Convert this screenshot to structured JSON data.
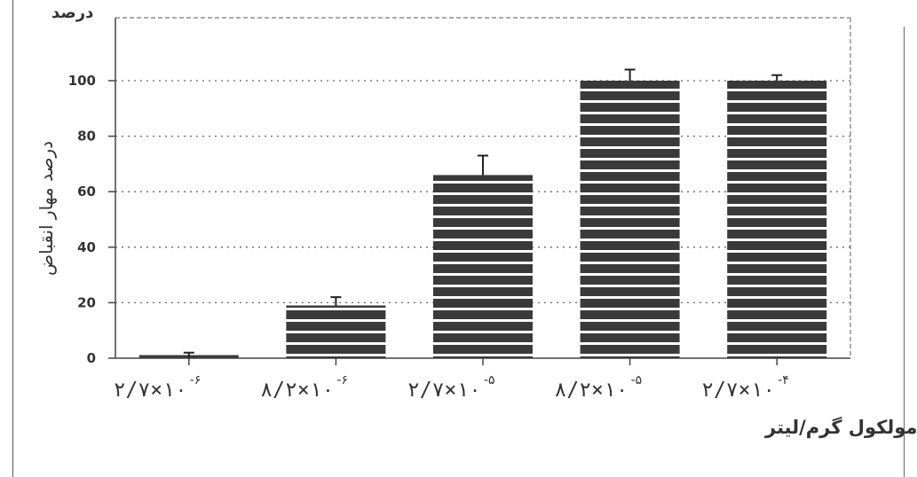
{
  "chart_data": {
    "type": "bar",
    "top_label": "درصد",
    "ylabel": "درصد مهار انقباض",
    "xlabel": "مولکول گرم/لیتر",
    "ylim": [
      0,
      110
    ],
    "yticks": [
      0,
      20,
      40,
      60,
      80,
      100
    ],
    "ytick_labels": [
      "0",
      "20",
      "40",
      "60",
      "80",
      "100"
    ],
    "grid": true,
    "categories": [
      {
        "base": "۲/۷×۱۰",
        "exp": "-۶"
      },
      {
        "base": "۸/۲×۱۰",
        "exp": "-۶"
      },
      {
        "base": "۲/۷×۱۰",
        "exp": "-۵"
      },
      {
        "base": "۸/۲×۱۰",
        "exp": "-۵"
      },
      {
        "base": "۲/۷×۱۰",
        "exp": "-۴"
      }
    ],
    "values": [
      0,
      19,
      66,
      100,
      100
    ],
    "errors": [
      2,
      3,
      7,
      4,
      2
    ],
    "bar_color": "#3a3a3a",
    "stripe_color": "#ffffff"
  }
}
